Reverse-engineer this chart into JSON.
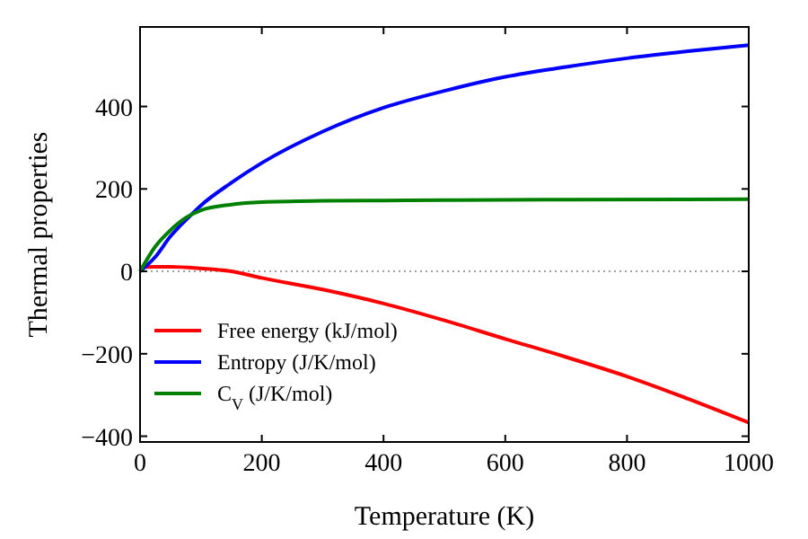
{
  "chart_data": {
    "type": "line",
    "xlabel": "Temperature (K)",
    "ylabel": "Thermal properties",
    "xlim": [
      0,
      1000
    ],
    "ylim": [
      -414,
      593
    ],
    "xticks": [
      0,
      200,
      400,
      600,
      800,
      1000
    ],
    "yticks": [
      -400,
      -200,
      0,
      200,
      400
    ],
    "grid": false,
    "legend": "bottom left",
    "line_style": "solid",
    "ref_lines": [
      {
        "axis": "y",
        "value": 0,
        "color": "#808080",
        "line_style": "dotted"
      }
    ],
    "series": [
      {
        "name": "Free energy (kJ/mol)",
        "color": "#ff0000",
        "x": [
          0,
          25,
          50,
          100,
          150,
          200,
          300,
          400,
          500,
          600,
          700,
          800,
          900,
          1000
        ],
        "values": [
          10,
          11,
          11,
          7,
          0,
          -16,
          -44,
          -78,
          -119,
          -164,
          -208,
          -255,
          -309,
          -367
        ]
      },
      {
        "name": "Entropy (J/K/mol)",
        "color": "#0000ff",
        "x": [
          0,
          25,
          50,
          75,
          100,
          150,
          200,
          300,
          400,
          500,
          600,
          700,
          800,
          900,
          1000
        ],
        "values": [
          0,
          35,
          85,
          124,
          160,
          215,
          263,
          339,
          397,
          438,
          472,
          496,
          517,
          534,
          549
        ]
      },
      {
        "name": "C$_{V}$ (J/K/mol)",
        "color": "#008000",
        "x": [
          0,
          25,
          50,
          75,
          100,
          150,
          200,
          300,
          400,
          500,
          700,
          1000
        ],
        "values": [
          0,
          60,
          100,
          130,
          148,
          162,
          168,
          171,
          172,
          173,
          174,
          175
        ]
      }
    ]
  }
}
